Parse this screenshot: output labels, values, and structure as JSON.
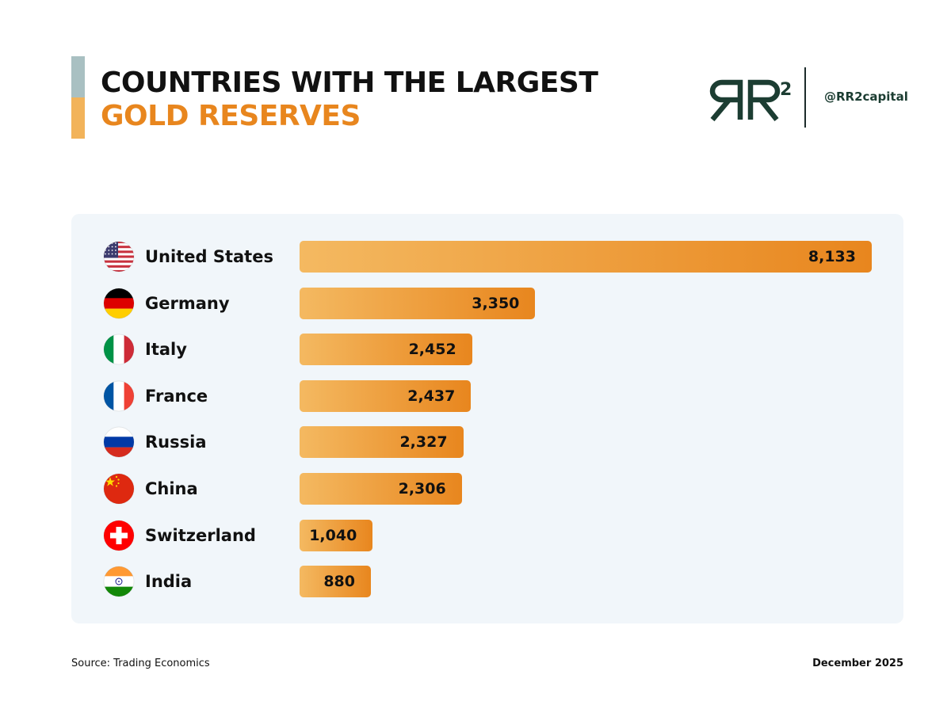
{
  "header": {
    "title_line1": "COUNTRIES WITH THE LARGEST",
    "title_line2": "GOLD RESERVES",
    "handle": "@RR2capital",
    "logo_text": "RR",
    "logo_superscript": "2"
  },
  "colors": {
    "title_dark": "#111111",
    "title_accent": "#e8861e",
    "accent_top": "#a9c0c2",
    "accent_bottom": "#f2b35a",
    "bar_start": "#f4b961",
    "bar_end": "#e8861e",
    "logo_green": "#1c3d32",
    "panel_bg": "#f1f6fa"
  },
  "chart_data": {
    "type": "bar",
    "orientation": "horizontal",
    "categories": [
      "United States",
      "Germany",
      "Italy",
      "France",
      "Russia",
      "China",
      "Switzerland",
      "India"
    ],
    "values": [
      8133,
      3350,
      2452,
      2437,
      2327,
      2306,
      1040,
      880
    ],
    "value_labels": [
      "8,133",
      "3,350",
      "2,452",
      "2,437",
      "2,327",
      "2,306",
      "1,040",
      "880"
    ],
    "flags": [
      "us-flag-icon",
      "germany-flag-icon",
      "italy-flag-icon",
      "france-flag-icon",
      "russia-flag-icon",
      "china-flag-icon",
      "switzerland-flag-icon",
      "india-flag-icon"
    ],
    "xlim": [
      0,
      8133
    ]
  },
  "footer": {
    "source": "Source: Trading Economics",
    "date": "December 2025"
  }
}
